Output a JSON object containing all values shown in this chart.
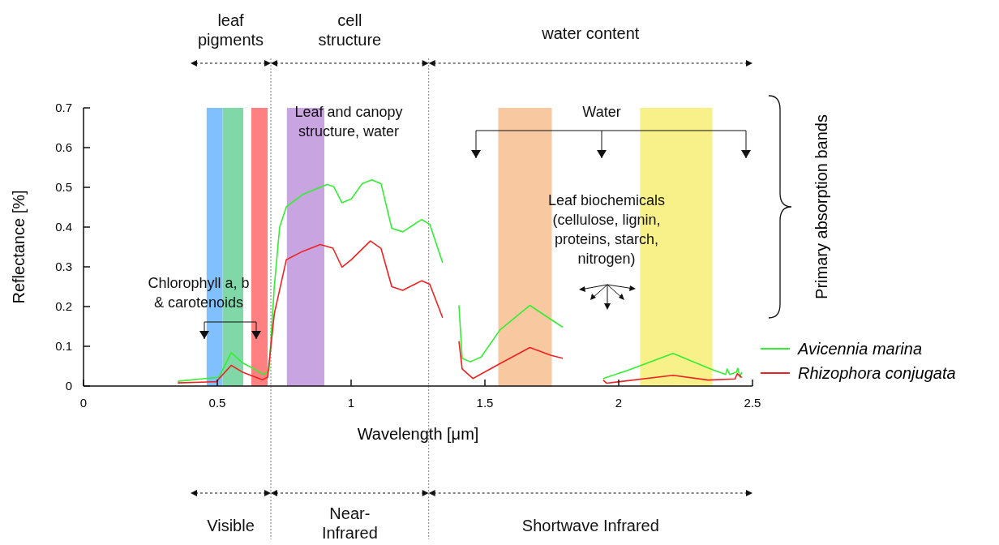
{
  "chart_data": {
    "type": "line",
    "xlabel": "Wavelength [μm]",
    "ylabel": "Reflectance [%]",
    "xlim": [
      0,
      2.5
    ],
    "xticks": [
      0,
      0.5,
      1,
      1.5,
      2,
      2.5
    ],
    "ylim": [
      0,
      0.7
    ],
    "yticks": [
      0,
      0.1,
      0.2,
      0.3,
      0.4,
      0.5,
      0.6,
      0.7
    ],
    "grid": false,
    "legend": "right",
    "line_style": "solid",
    "series": [
      {
        "name": "Avicennia marina",
        "color": "#33ee33",
        "x": [
          0.352,
          0.455,
          0.506,
          0.552,
          0.597,
          0.627,
          0.673,
          0.693,
          0.713,
          0.733,
          0.758,
          0.819,
          0.91,
          0.935,
          0.966,
          1.001,
          1.041,
          1.077,
          1.112,
          1.152,
          1.193,
          1.264,
          1.294,
          1.342,
          1.37,
          1.403,
          1.415,
          1.445,
          1.486,
          1.556,
          1.668,
          1.728,
          1.791,
          1.9,
          1.942,
          2.031,
          2.203,
          2.344,
          2.4,
          2.405,
          2.415,
          2.44,
          2.445,
          2.453,
          2.46
        ],
        "values": [
          0.012,
          0.019,
          0.022,
          0.084,
          0.057,
          0.047,
          0.029,
          0.039,
          0.25,
          0.4,
          0.451,
          0.482,
          0.507,
          0.502,
          0.461,
          0.471,
          0.509,
          0.519,
          0.509,
          0.397,
          0.388,
          0.419,
          0.407,
          0.31,
          null,
          0.203,
          0.07,
          0.061,
          0.073,
          0.141,
          0.203,
          0.176,
          0.148,
          null,
          0.019,
          0.039,
          0.082,
          0.043,
          0.029,
          0.043,
          0.029,
          0.035,
          0.045,
          0.023,
          0.035
        ]
      },
      {
        "name": "Rhizophora conjugata",
        "color": "#ee2222",
        "x": [
          0.352,
          0.496,
          0.552,
          0.597,
          0.668,
          0.688,
          0.713,
          0.758,
          0.819,
          0.885,
          0.932,
          0.966,
          1.001,
          1.072,
          1.112,
          1.152,
          1.193,
          1.264,
          1.294,
          1.342,
          1.37,
          1.403,
          1.415,
          1.455,
          1.547,
          1.668,
          1.748,
          1.791,
          1.9,
          1.942,
          1.955,
          2.203,
          2.334,
          2.435,
          2.443,
          2.46
        ],
        "values": [
          0.008,
          0.011,
          0.052,
          0.034,
          0.016,
          0.022,
          0.182,
          0.318,
          0.339,
          0.356,
          0.347,
          0.299,
          0.318,
          0.365,
          0.346,
          0.25,
          0.241,
          0.265,
          0.256,
          0.172,
          null,
          0.113,
          0.043,
          0.019,
          0.053,
          0.097,
          0.077,
          0.07,
          null,
          0.015,
          0.007,
          0.027,
          0.015,
          0.018,
          0.031,
          0.021
        ]
      }
    ],
    "bands": [
      {
        "axis": "x",
        "from": 0.46,
        "to": 0.52,
        "color": "#80c0ff"
      },
      {
        "axis": "x",
        "from": 0.52,
        "to": 0.597,
        "color": "#80d8a8"
      },
      {
        "axis": "x",
        "from": 0.627,
        "to": 0.688,
        "color": "#ff8080"
      },
      {
        "axis": "x",
        "from": 0.76,
        "to": 0.9,
        "color": "#c8a4e0"
      },
      {
        "axis": "x",
        "from": 1.55,
        "to": 1.75,
        "color": "#f8c8a0"
      },
      {
        "axis": "x",
        "from": 2.08,
        "to": 2.35,
        "color": "#f8f088"
      }
    ],
    "ref_lines": [
      {
        "axis": "x",
        "value": 0.7,
        "color": "#808080",
        "line_style": "dotted"
      },
      {
        "axis": "x",
        "value": 1.29,
        "color": "#808080",
        "line_style": "dotted"
      }
    ],
    "annotations": [
      "leaf\npigments",
      "cell\nstructure",
      "water content",
      "Leaf and canopy\nstructure, water",
      "Water",
      "Leaf biochemicals\n(cellulose, lignin,\nproteins, starch,\nnitrogen)",
      "Chlorophyll a, b\n& carotenoids",
      "Primary absorption bands",
      "Visible",
      "Near-\nInfrared",
      "Shortwave Infrared"
    ]
  }
}
